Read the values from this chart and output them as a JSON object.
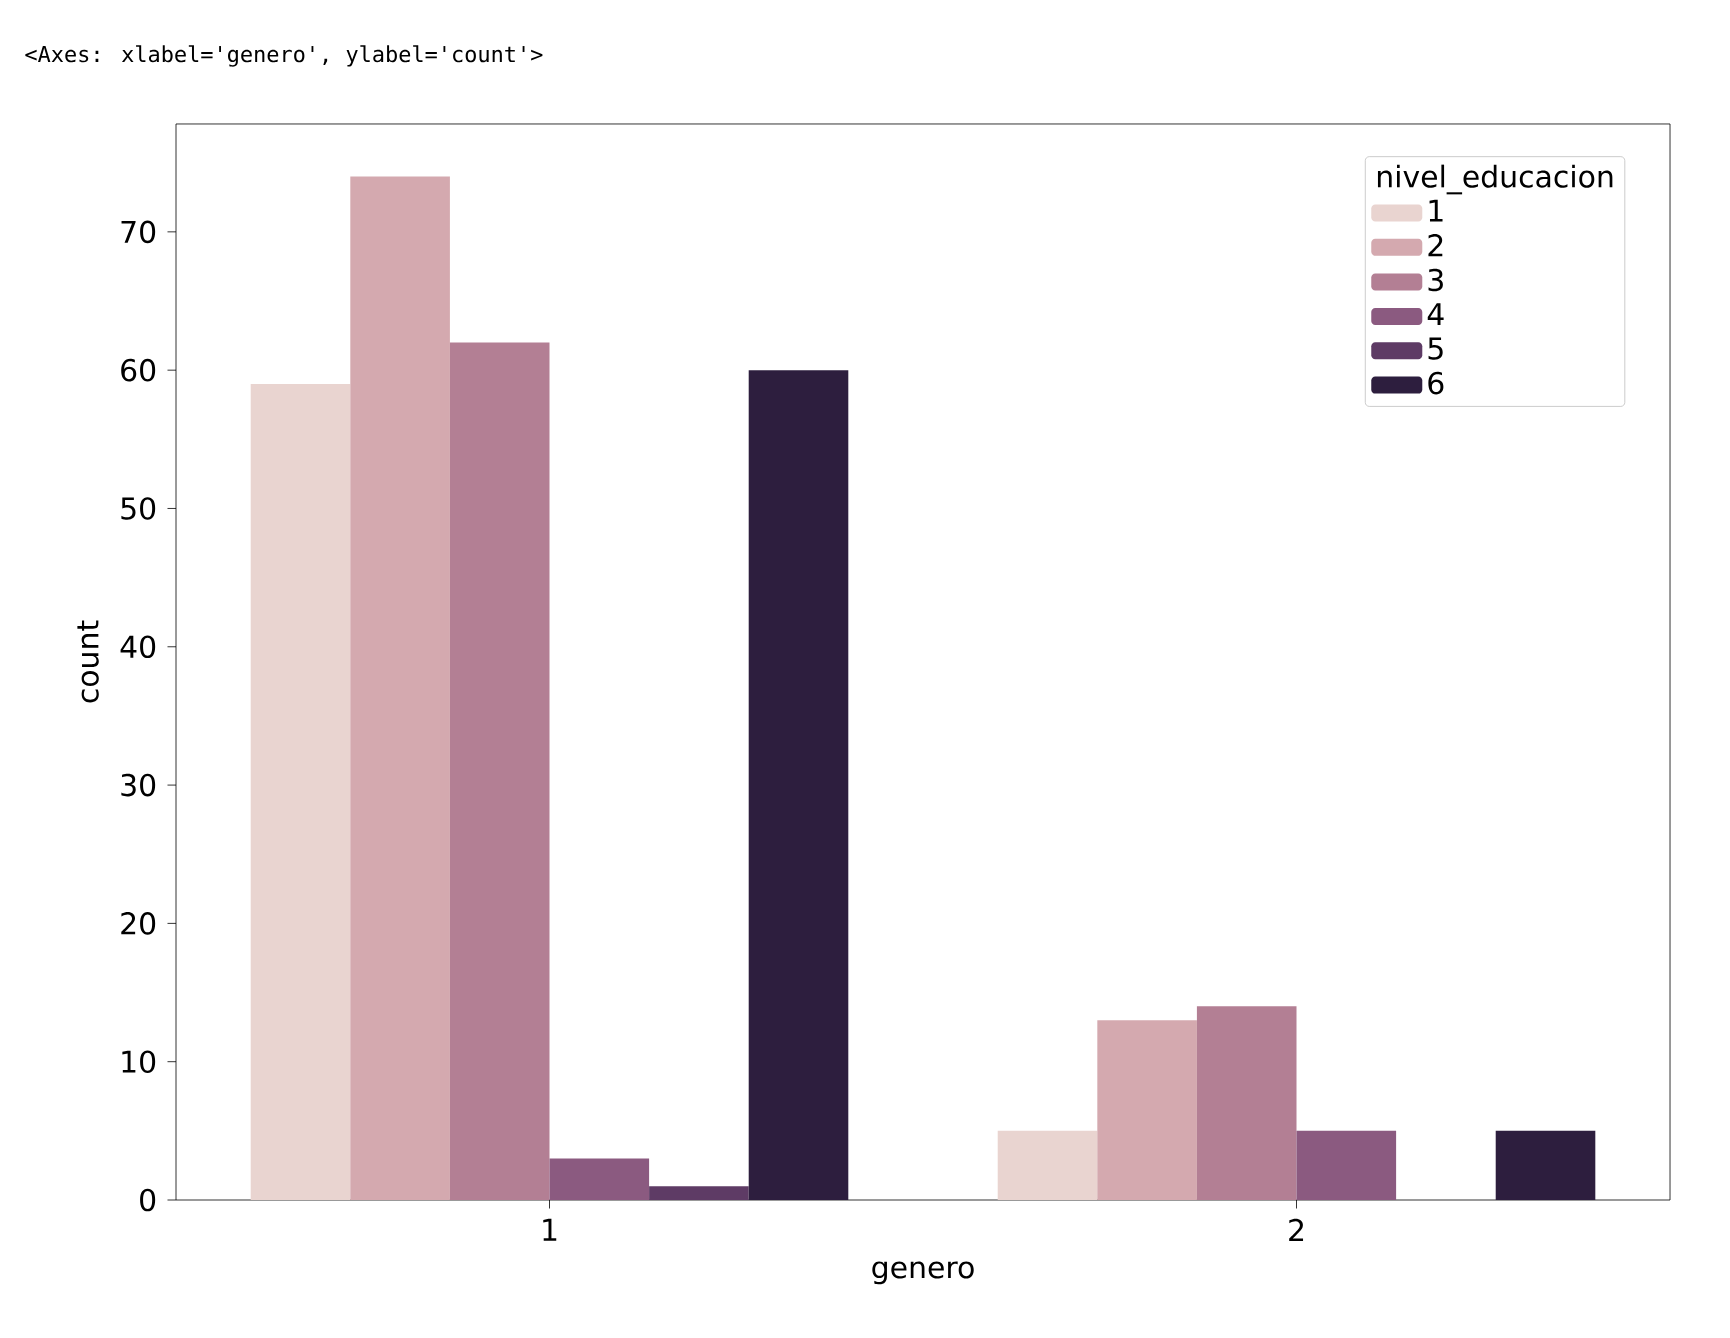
{
  "chart_data": {
    "type": "bar",
    "xlabel": "genero",
    "ylabel": "count",
    "legend_title": "nivel_educacion",
    "categories": [
      "1",
      "2"
    ],
    "series": [
      {
        "name": "1",
        "color": "#e9d4d0",
        "values": [
          59,
          5
        ]
      },
      {
        "name": "2",
        "color": "#d4a9af",
        "values": [
          74,
          13
        ]
      },
      {
        "name": "3",
        "color": "#b37f94",
        "values": [
          62,
          14
        ]
      },
      {
        "name": "4",
        "color": "#8b5a80",
        "values": [
          3,
          5
        ]
      },
      {
        "name": "5",
        "color": "#5e3b65",
        "values": [
          1,
          null
        ]
      },
      {
        "name": "6",
        "color": "#2d1e3e",
        "values": [
          60,
          5
        ]
      }
    ],
    "ylim": [
      0,
      77.8
    ],
    "yticks": [
      0,
      10,
      20,
      30,
      40,
      50,
      60,
      70
    ],
    "grid": false,
    "legend": "top right",
    "annotations": [
      "<Axes: xlabel='genero', ylabel='count'>"
    ]
  }
}
